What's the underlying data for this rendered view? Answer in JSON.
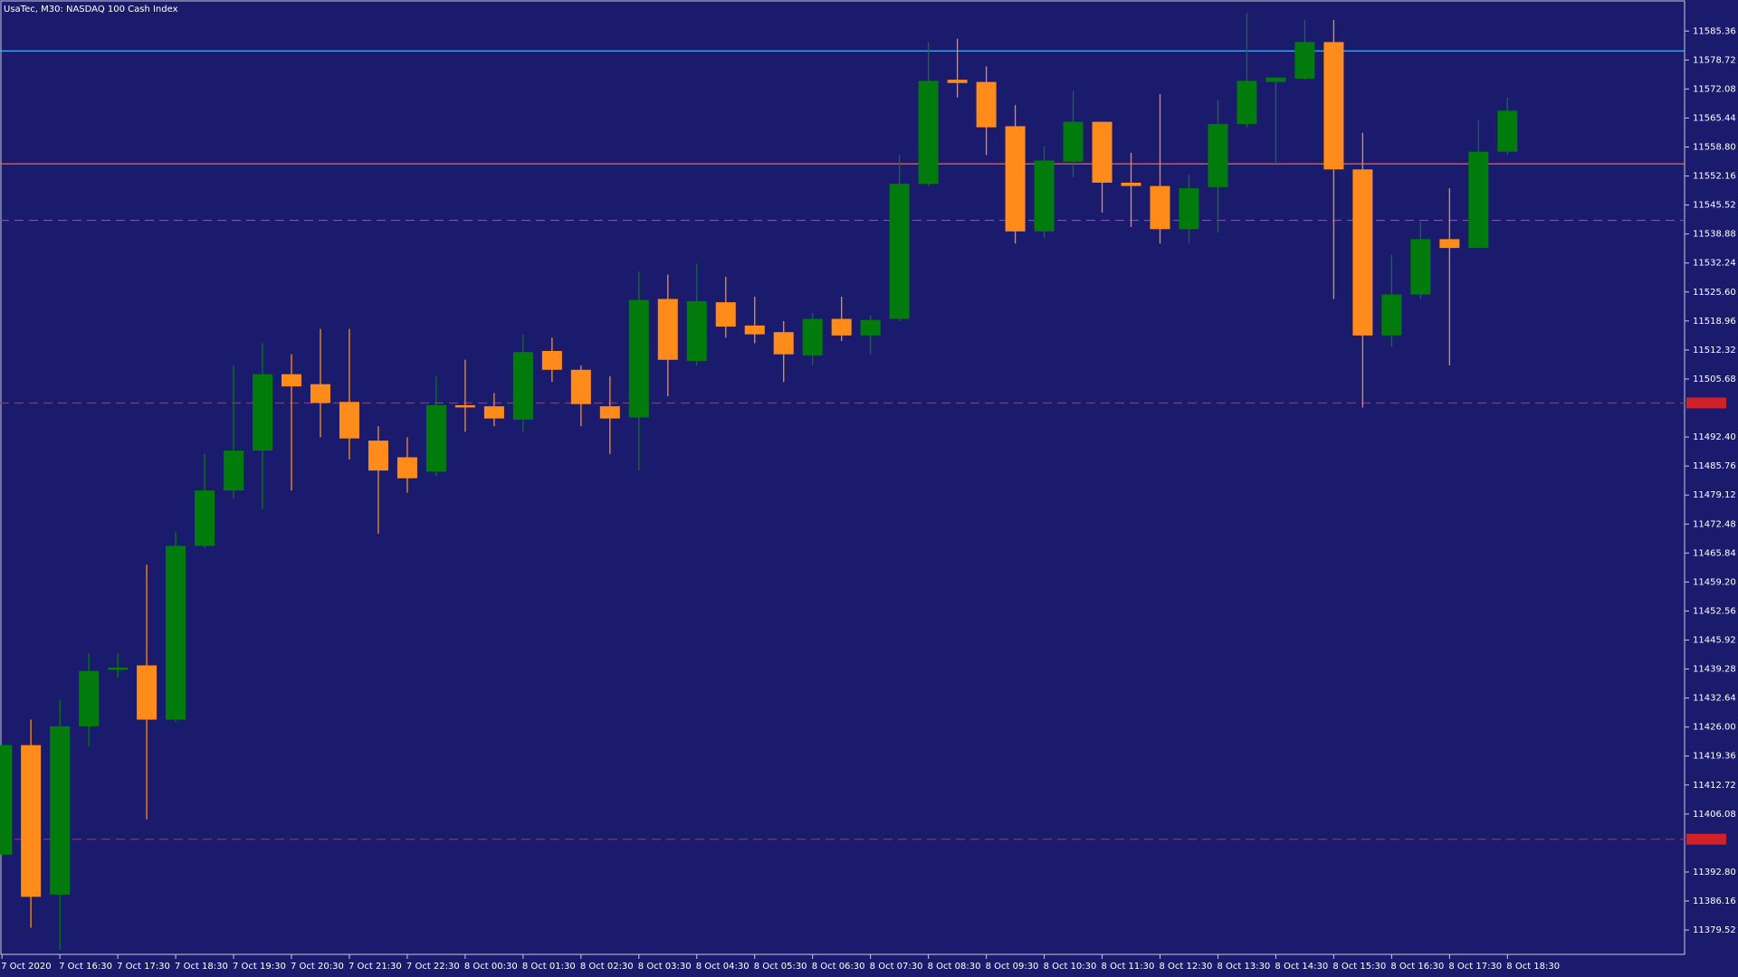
{
  "chart_data": {
    "type": "candlestick",
    "title": "UsaTec, M30:  NASDAQ 100 Cash Index",
    "background": "#1b1b6e",
    "up_color": "#007b0c",
    "down_color": "#ff8c1a",
    "categories": [
      "7 Oct 2020",
      null,
      "7 Oct 16:30",
      null,
      "7 Oct 17:30",
      null,
      "7 Oct 18:30",
      null,
      "7 Oct 19:30",
      null,
      "7 Oct 20:30",
      null,
      "7 Oct 21:30",
      null,
      "7 Oct 22:30",
      null,
      "8 Oct 00:30",
      null,
      "8 Oct 01:30",
      null,
      "8 Oct 02:30",
      null,
      "8 Oct 03:30",
      null,
      "8 Oct 04:30",
      null,
      "8 Oct 05:30",
      null,
      "8 Oct 06:30",
      null,
      "8 Oct 07:30",
      null,
      "8 Oct 08:30",
      null,
      "8 Oct 09:30",
      null,
      "8 Oct 10:30",
      null,
      "8 Oct 11:30",
      null,
      "8 Oct 12:30",
      null,
      "8 Oct 13:30",
      null,
      "8 Oct 14:30",
      null,
      "8 Oct 15:30",
      null,
      "8 Oct 16:30",
      null,
      "8 Oct 17:30",
      null,
      "8 Oct 18:30"
    ],
    "open": [
      11396.76,
      11421.85,
      11387.63,
      11426.16,
      11439.09,
      11440.11,
      11427.68,
      11467.48,
      11480.16,
      11489.29,
      11506.78,
      11504.5,
      11500.44,
      11491.57,
      11487.76,
      11484.47,
      11499.68,
      11499.43,
      11496.38,
      11512.1,
      11507.79,
      11499.43,
      11496.89,
      11524.01,
      11509.82,
      11523.25,
      11517.93,
      11516.41,
      11511.09,
      11519.45,
      11515.65,
      11519.45,
      11550.38,
      11574.21,
      11573.7,
      11563.56,
      11539.48,
      11555.45,
      11564.57,
      11550.63,
      11549.87,
      11539.99,
      11549.62,
      11564.07,
      11573.7,
      11574.46,
      11582.83,
      11553.67,
      11515.65,
      11525.03,
      11537.7,
      11535.68,
      11557.73
    ],
    "high": [
      11421.85,
      11427.68,
      11432.25,
      11442.89,
      11442.89,
      11463.17,
      11470.78,
      11488.52,
      11508.8,
      11513.87,
      11511.34,
      11517.17,
      11517.17,
      11494.86,
      11492.33,
      11506.27,
      11510.07,
      11502.47,
      11515.9,
      11515.14,
      11508.8,
      11506.27,
      11530.35,
      11529.59,
      11532.13,
      11529.08,
      11524.52,
      11518.94,
      11520.72,
      11524.52,
      11520.21,
      11556.97,
      11582.83,
      11583.59,
      11577.25,
      11568.38,
      11559.0,
      11571.67,
      11564.57,
      11557.48,
      11570.91,
      11552.41,
      11569.64,
      11589.42,
      11574.71,
      11587.9,
      11587.9,
      11562.04,
      11534.15,
      11541.76,
      11549.36,
      11565.08,
      11570.15
    ],
    "low": [
      11396.76,
      11380.03,
      11374.96,
      11421.6,
      11437.32,
      11404.87,
      11427.18,
      11466.98,
      11478.38,
      11475.85,
      11480.16,
      11492.33,
      11487.26,
      11470.27,
      11479.65,
      11483.45,
      11493.59,
      11494.86,
      11493.59,
      11505.0,
      11494.86,
      11488.52,
      11484.72,
      11501.71,
      11508.8,
      11515.14,
      11513.87,
      11505.0,
      11508.8,
      11514.38,
      11511.34,
      11518.94,
      11549.87,
      11570.15,
      11556.97,
      11536.69,
      11537.96,
      11551.9,
      11543.79,
      11540.49,
      11536.69,
      11536.69,
      11539.22,
      11563.31,
      11554.94,
      11574.21,
      11524.01,
      11499.17,
      11513.11,
      11524.01,
      11508.8,
      11535.68,
      11556.97
    ],
    "close": [
      11421.85,
      11387.12,
      11426.16,
      11438.84,
      11439.6,
      11427.68,
      11467.48,
      11480.16,
      11489.29,
      11506.78,
      11503.99,
      11500.19,
      11492.07,
      11484.72,
      11482.95,
      11499.68,
      11499.17,
      11496.64,
      11511.85,
      11507.79,
      11499.93,
      11496.64,
      11523.76,
      11510.07,
      11523.51,
      11517.68,
      11515.9,
      11511.34,
      11519.45,
      11515.65,
      11519.2,
      11550.38,
      11573.95,
      11573.45,
      11563.31,
      11539.48,
      11555.7,
      11564.57,
      11550.63,
      11549.87,
      11539.99,
      11549.36,
      11564.07,
      11573.95,
      11574.71,
      11582.83,
      11553.67,
      11515.65,
      11525.03,
      11537.7,
      11535.68,
      11557.73,
      11567.11
    ],
    "ylim": [
      11373.94,
      11592.46
    ],
    "yticks": [
      11585.36,
      11578.72,
      11572.08,
      11565.44,
      {
        "value": 11558.8,
        "label": "11558.80"
      },
      11552.16,
      11545.52,
      11538.88,
      11532.24,
      {
        "value": 11525.6,
        "label": "11525.60"
      },
      11518.96,
      11512.32,
      11505.68,
      {
        "value": 11492.4,
        "label": "11492.40"
      },
      11485.76,
      11479.12,
      11472.48,
      11465.84,
      {
        "value": 11459.2,
        "label": "11459.20"
      },
      11452.56,
      11445.92,
      11439.28,
      11432.64,
      {
        "value": 11426,
        "label": "11426.00"
      },
      11419.36,
      11412.72,
      11406.08,
      {
        "value": 11392.8,
        "label": "11392.80"
      },
      11386.16,
      11379.52
    ],
    "levels": [
      {
        "value": 11580.8,
        "color": "#4fb8ff",
        "dash": "solid"
      },
      {
        "value": 11554.94,
        "color": "#e0703a",
        "dash": "solid"
      },
      {
        "value": 11542.01,
        "color": "#8a3fd8",
        "dash": "dashed"
      },
      {
        "value": 11500.19,
        "color": "#d0202a",
        "dash": "dashed",
        "price_tag": true
      },
      {
        "value": 11400.31,
        "color": "#d0202a",
        "dash": "dashed",
        "price_tag": true
      }
    ]
  }
}
